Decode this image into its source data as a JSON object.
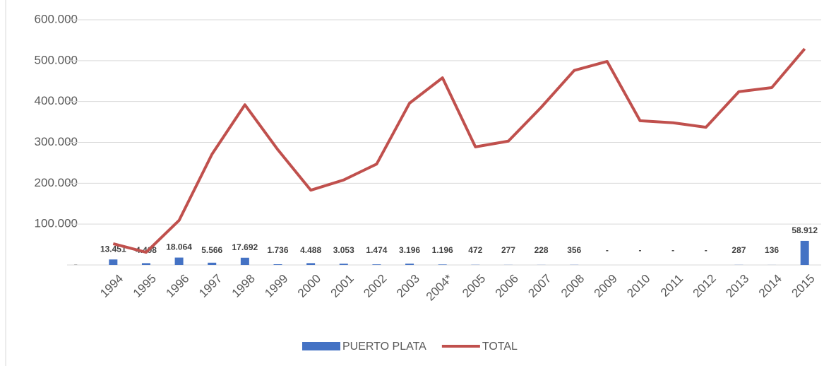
{
  "chart_data": {
    "type": "bar+line",
    "categories": [
      "1994",
      "1995",
      "1996",
      "1997",
      "1998",
      "1999",
      "2000",
      "2001",
      "2002",
      "2003",
      "2004*",
      "2005",
      "2006",
      "2007",
      "2008",
      "2009",
      "2010",
      "2011",
      "2012",
      "2013",
      "2014",
      "2015"
    ],
    "series": [
      {
        "name": "PUERTO PLATA",
        "type": "bar",
        "color": "#4472c4",
        "values": [
          13451,
          4408,
          18064,
          5566,
          17692,
          1736,
          4488,
          3053,
          1474,
          3196,
          1196,
          472,
          277,
          228,
          356,
          0,
          0,
          0,
          0,
          287,
          136,
          58912
        ],
        "value_labels": [
          "13.451",
          "4.408",
          "18.064",
          "5.566",
          "17.692",
          "1.736",
          "4.488",
          "3.053",
          "1.474",
          "3.196",
          "1.196",
          "472",
          "277",
          "228",
          "356",
          "-",
          "-",
          "-",
          "-",
          "287",
          "136",
          "58.912"
        ]
      },
      {
        "name": "TOTAL",
        "type": "line",
        "color": "#c0504d",
        "values": [
          52000,
          31000,
          109000,
          271000,
          392000,
          282000,
          183000,
          208000,
          247000,
          396000,
          458000,
          289000,
          303000,
          386000,
          476000,
          498000,
          353000,
          348000,
          337000,
          424000,
          434000,
          529000
        ]
      }
    ],
    "ylim": [
      0,
      600000
    ],
    "yticks": [
      {
        "value": 0,
        "label": "-"
      },
      {
        "value": 100000,
        "label": "100.000"
      },
      {
        "value": 200000,
        "label": "200.000"
      },
      {
        "value": 300000,
        "label": "300.000"
      },
      {
        "value": 400000,
        "label": "400.000"
      },
      {
        "value": 500000,
        "label": "500.000"
      },
      {
        "value": 600000,
        "label": "600.000"
      }
    ],
    "grid": true,
    "legend": "bottom"
  }
}
